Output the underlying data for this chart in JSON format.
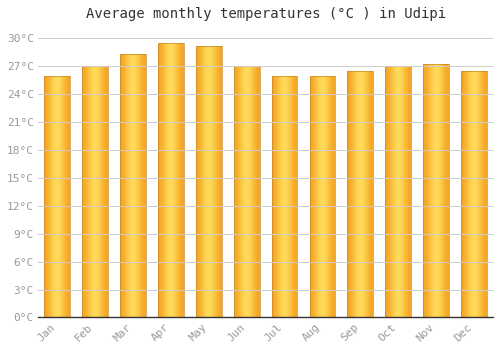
{
  "title": "Average monthly temperatures (°C ) in Udipi",
  "months": [
    "Jan",
    "Feb",
    "Mar",
    "Apr",
    "May",
    "Jun",
    "Jul",
    "Aug",
    "Sep",
    "Oct",
    "Nov",
    "Dec"
  ],
  "values": [
    26.0,
    27.0,
    28.3,
    29.5,
    29.2,
    27.0,
    26.0,
    26.0,
    26.5,
    27.0,
    27.2,
    26.5
  ],
  "bar_color": "#FFA500",
  "bar_edge_color": "#CC8800",
  "ylim": [
    0,
    31
  ],
  "yticks": [
    0,
    3,
    6,
    9,
    12,
    15,
    18,
    21,
    24,
    27,
    30
  ],
  "background_color": "#FFFFFF",
  "plot_bg_color": "#FFFFFF",
  "grid_color": "#CCCCCC",
  "title_fontsize": 10,
  "tick_fontsize": 8,
  "tick_color": "#999999",
  "axis_color": "#333333",
  "font_family": "monospace"
}
